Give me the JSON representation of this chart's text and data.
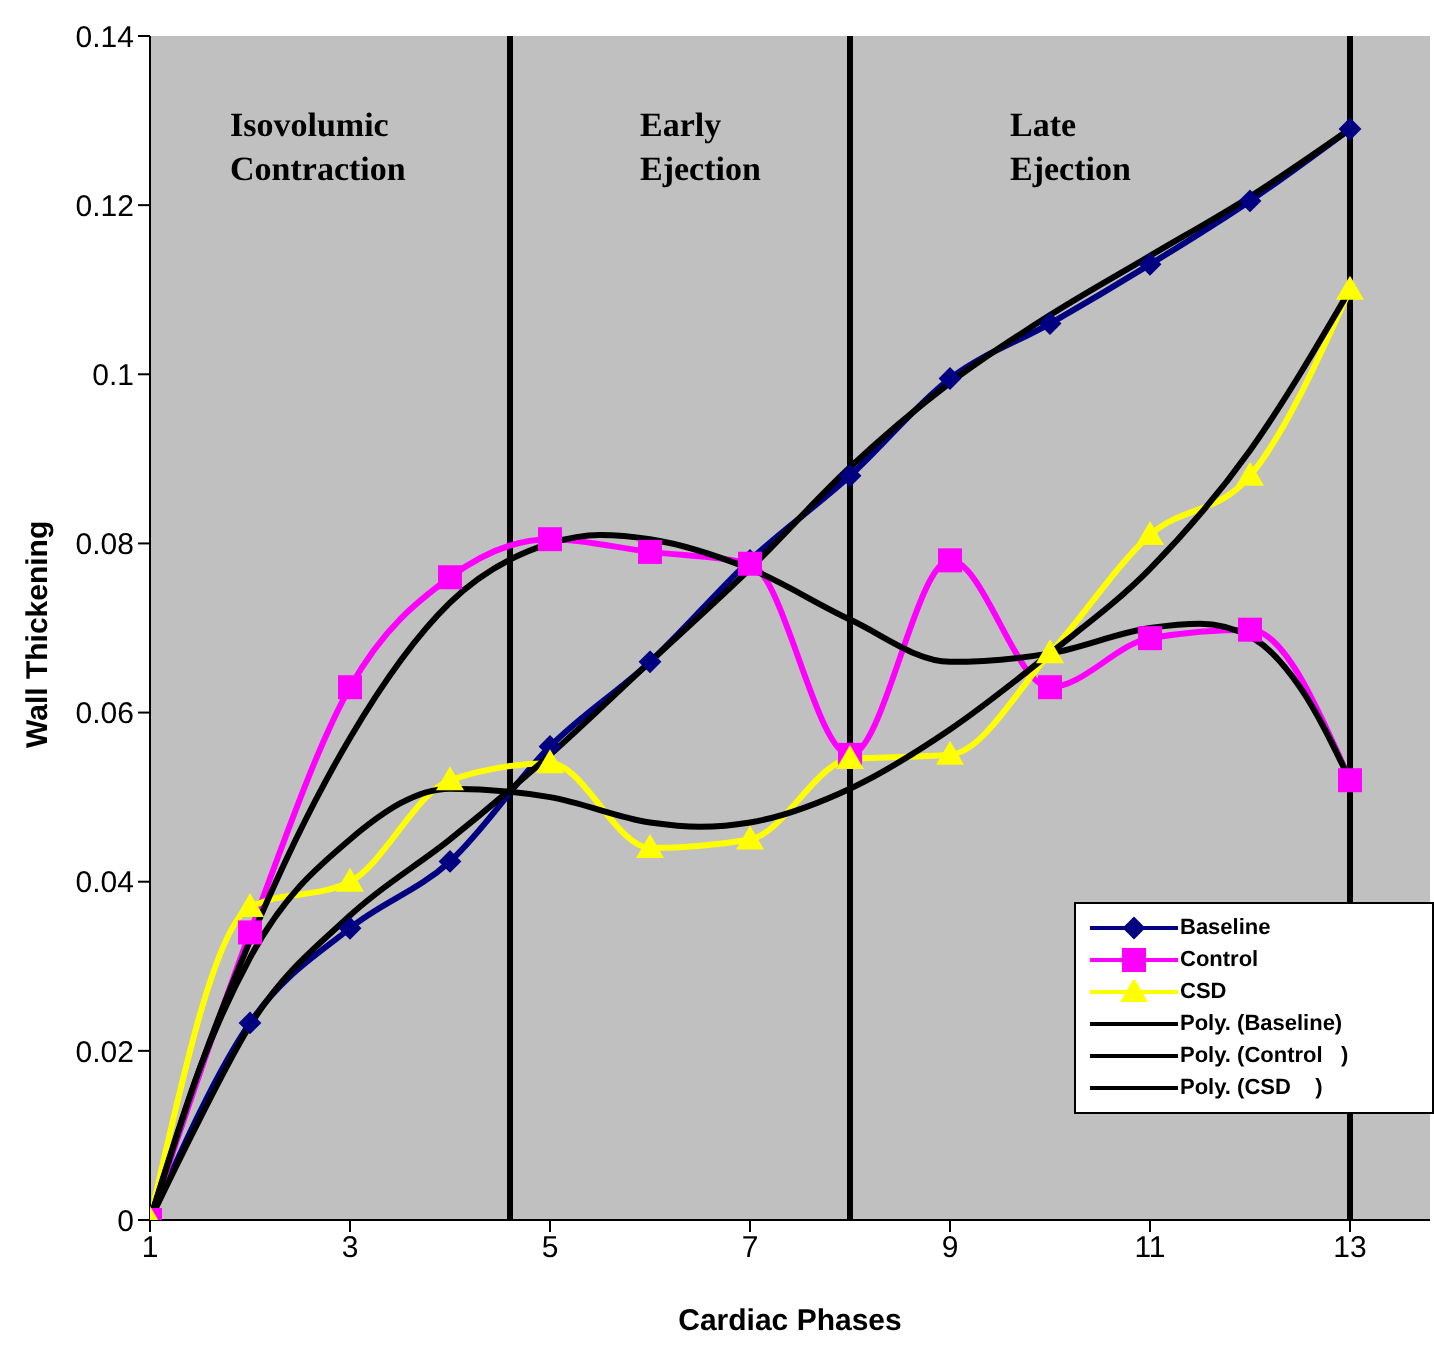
{
  "chart_data": {
    "type": "line",
    "xlabel": "Cardiac Phases",
    "ylabel": "Wall Thickening",
    "xlim": [
      1,
      13.8
    ],
    "xticks": [
      1,
      3,
      5,
      7,
      9,
      11,
      13
    ],
    "ylim": [
      0,
      0.14
    ],
    "yticks": [
      0,
      0.02,
      0.04,
      0.06,
      0.08,
      0.1,
      0.12,
      0.14
    ],
    "legend": "bottom right",
    "x": [
      1,
      2,
      3,
      4,
      5,
      6,
      7,
      8,
      9,
      10,
      11,
      12,
      13
    ],
    "series": [
      {
        "name": "Baseline",
        "color": "#000080",
        "marker": "diamond",
        "values": [
          0,
          0.0233,
          0.0345,
          0.0424,
          0.056,
          0.066,
          0.078,
          0.088,
          0.0995,
          0.106,
          0.113,
          0.1205,
          0.129
        ]
      },
      {
        "name": "Control",
        "color": "#ff00ff",
        "marker": "square",
        "values": [
          0,
          0.034,
          0.063,
          0.076,
          0.0805,
          0.079,
          0.0776,
          0.055,
          0.078,
          0.063,
          0.0688,
          0.0698,
          0.052
        ]
      },
      {
        "name": "CSD",
        "color": "#ffff00",
        "marker": "triangle",
        "values": [
          0,
          0.037,
          0.04,
          0.052,
          0.054,
          0.044,
          0.045,
          0.0545,
          0.055,
          0.067,
          0.081,
          0.088,
          0.11
        ]
      },
      {
        "name": "Poly. (Baseline)",
        "color": "#000000",
        "marker": "none",
        "x": [
          1,
          1.5,
          2,
          3,
          4,
          5,
          6,
          7,
          8,
          9,
          10,
          11,
          12,
          13
        ],
        "values": [
          0,
          0.012,
          0.023,
          0.036,
          0.045,
          0.055,
          0.066,
          0.077,
          0.089,
          0.099,
          0.107,
          0.114,
          0.121,
          0.129
        ]
      },
      {
        "name": "Poly. (Control   )",
        "color": "#000000",
        "marker": "none",
        "x": [
          1,
          1.5,
          2,
          3,
          4,
          5,
          5.5,
          6,
          7,
          8,
          9,
          10,
          11,
          11.5,
          12,
          12.5,
          13
        ],
        "values": [
          0,
          0.018,
          0.033,
          0.057,
          0.073,
          0.08,
          0.081,
          0.0805,
          0.077,
          0.071,
          0.066,
          0.067,
          0.07,
          0.0705,
          0.069,
          0.063,
          0.052
        ]
      },
      {
        "name": "Poly. (CSD    )",
        "color": "#000000",
        "marker": "none",
        "x": [
          1,
          1.5,
          2,
          3,
          4,
          5,
          6,
          6.5,
          7,
          8,
          9,
          10,
          11,
          12,
          13
        ],
        "values": [
          0,
          0.018,
          0.031,
          0.045,
          0.051,
          0.05,
          0.047,
          0.0465,
          0.047,
          0.051,
          0.058,
          0.067,
          0.077,
          0.091,
          0.11
        ]
      }
    ],
    "ref_lines": [
      {
        "axis": "x",
        "value": 4.6,
        "color": "#000000"
      },
      {
        "axis": "x",
        "value": 8,
        "color": "#000000"
      },
      {
        "axis": "x",
        "value": 13,
        "color": "#000000"
      }
    ],
    "annotations": [
      "Isovolumic Contraction",
      "Early Ejection",
      "Late Ejection"
    ]
  }
}
